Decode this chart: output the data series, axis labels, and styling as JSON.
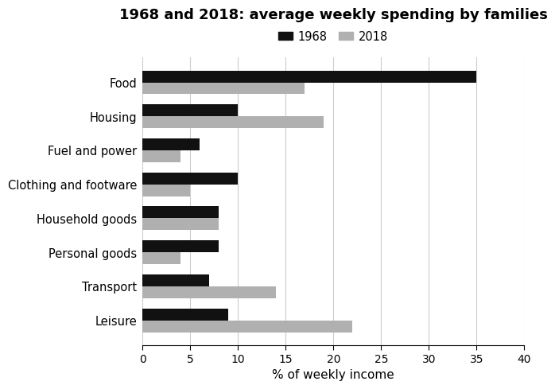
{
  "title": "1968 and 2018: average weekly spending by families",
  "categories": [
    "Food",
    "Housing",
    "Fuel and power",
    "Clothing and footware",
    "Household goods",
    "Personal goods",
    "Transport",
    "Leisure"
  ],
  "values_1968": [
    35,
    10,
    6,
    10,
    8,
    8,
    7,
    9
  ],
  "values_2018": [
    17,
    19,
    4,
    5,
    8,
    4,
    14,
    22
  ],
  "color_1968": "#111111",
  "color_2018": "#b0b0b0",
  "xlabel": "% of weekly income",
  "xlim": [
    0,
    40
  ],
  "xticks": [
    0,
    5,
    10,
    15,
    20,
    25,
    30,
    35,
    40
  ],
  "legend_labels": [
    "1968",
    "2018"
  ],
  "bar_height": 0.35,
  "background_color": "#ffffff",
  "grid_color": "#cccccc"
}
